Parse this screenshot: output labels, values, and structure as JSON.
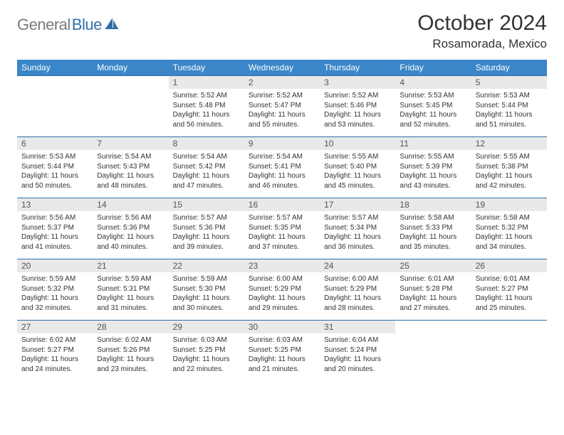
{
  "logo": {
    "gray": "General",
    "blue": "Blue"
  },
  "title": "October 2024",
  "location": "Rosamorada, Mexico",
  "colors": {
    "header_bg": "#3a86c8",
    "header_fg": "#ffffff",
    "daynum_bg": "#e9e9e9",
    "border": "#2f6fa8",
    "logo_gray": "#7a7a7a",
    "logo_blue": "#2f6fa8"
  },
  "weekdays": [
    "Sunday",
    "Monday",
    "Tuesday",
    "Wednesday",
    "Thursday",
    "Friday",
    "Saturday"
  ],
  "weeks": [
    [
      null,
      null,
      {
        "n": "1",
        "sr": "5:52 AM",
        "ss": "5:48 PM",
        "dl": "11 hours and 56 minutes."
      },
      {
        "n": "2",
        "sr": "5:52 AM",
        "ss": "5:47 PM",
        "dl": "11 hours and 55 minutes."
      },
      {
        "n": "3",
        "sr": "5:52 AM",
        "ss": "5:46 PM",
        "dl": "11 hours and 53 minutes."
      },
      {
        "n": "4",
        "sr": "5:53 AM",
        "ss": "5:45 PM",
        "dl": "11 hours and 52 minutes."
      },
      {
        "n": "5",
        "sr": "5:53 AM",
        "ss": "5:44 PM",
        "dl": "11 hours and 51 minutes."
      }
    ],
    [
      {
        "n": "6",
        "sr": "5:53 AM",
        "ss": "5:44 PM",
        "dl": "11 hours and 50 minutes."
      },
      {
        "n": "7",
        "sr": "5:54 AM",
        "ss": "5:43 PM",
        "dl": "11 hours and 48 minutes."
      },
      {
        "n": "8",
        "sr": "5:54 AM",
        "ss": "5:42 PM",
        "dl": "11 hours and 47 minutes."
      },
      {
        "n": "9",
        "sr": "5:54 AM",
        "ss": "5:41 PM",
        "dl": "11 hours and 46 minutes."
      },
      {
        "n": "10",
        "sr": "5:55 AM",
        "ss": "5:40 PM",
        "dl": "11 hours and 45 minutes."
      },
      {
        "n": "11",
        "sr": "5:55 AM",
        "ss": "5:39 PM",
        "dl": "11 hours and 43 minutes."
      },
      {
        "n": "12",
        "sr": "5:55 AM",
        "ss": "5:38 PM",
        "dl": "11 hours and 42 minutes."
      }
    ],
    [
      {
        "n": "13",
        "sr": "5:56 AM",
        "ss": "5:37 PM",
        "dl": "11 hours and 41 minutes."
      },
      {
        "n": "14",
        "sr": "5:56 AM",
        "ss": "5:36 PM",
        "dl": "11 hours and 40 minutes."
      },
      {
        "n": "15",
        "sr": "5:57 AM",
        "ss": "5:36 PM",
        "dl": "11 hours and 39 minutes."
      },
      {
        "n": "16",
        "sr": "5:57 AM",
        "ss": "5:35 PM",
        "dl": "11 hours and 37 minutes."
      },
      {
        "n": "17",
        "sr": "5:57 AM",
        "ss": "5:34 PM",
        "dl": "11 hours and 36 minutes."
      },
      {
        "n": "18",
        "sr": "5:58 AM",
        "ss": "5:33 PM",
        "dl": "11 hours and 35 minutes."
      },
      {
        "n": "19",
        "sr": "5:58 AM",
        "ss": "5:32 PM",
        "dl": "11 hours and 34 minutes."
      }
    ],
    [
      {
        "n": "20",
        "sr": "5:59 AM",
        "ss": "5:32 PM",
        "dl": "11 hours and 32 minutes."
      },
      {
        "n": "21",
        "sr": "5:59 AM",
        "ss": "5:31 PM",
        "dl": "11 hours and 31 minutes."
      },
      {
        "n": "22",
        "sr": "5:59 AM",
        "ss": "5:30 PM",
        "dl": "11 hours and 30 minutes."
      },
      {
        "n": "23",
        "sr": "6:00 AM",
        "ss": "5:29 PM",
        "dl": "11 hours and 29 minutes."
      },
      {
        "n": "24",
        "sr": "6:00 AM",
        "ss": "5:29 PM",
        "dl": "11 hours and 28 minutes."
      },
      {
        "n": "25",
        "sr": "6:01 AM",
        "ss": "5:28 PM",
        "dl": "11 hours and 27 minutes."
      },
      {
        "n": "26",
        "sr": "6:01 AM",
        "ss": "5:27 PM",
        "dl": "11 hours and 25 minutes."
      }
    ],
    [
      {
        "n": "27",
        "sr": "6:02 AM",
        "ss": "5:27 PM",
        "dl": "11 hours and 24 minutes."
      },
      {
        "n": "28",
        "sr": "6:02 AM",
        "ss": "5:26 PM",
        "dl": "11 hours and 23 minutes."
      },
      {
        "n": "29",
        "sr": "6:03 AM",
        "ss": "5:25 PM",
        "dl": "11 hours and 22 minutes."
      },
      {
        "n": "30",
        "sr": "6:03 AM",
        "ss": "5:25 PM",
        "dl": "11 hours and 21 minutes."
      },
      {
        "n": "31",
        "sr": "6:04 AM",
        "ss": "5:24 PM",
        "dl": "11 hours and 20 minutes."
      },
      null,
      null
    ]
  ],
  "labels": {
    "sunrise": "Sunrise:",
    "sunset": "Sunset:",
    "daylight": "Daylight:"
  }
}
